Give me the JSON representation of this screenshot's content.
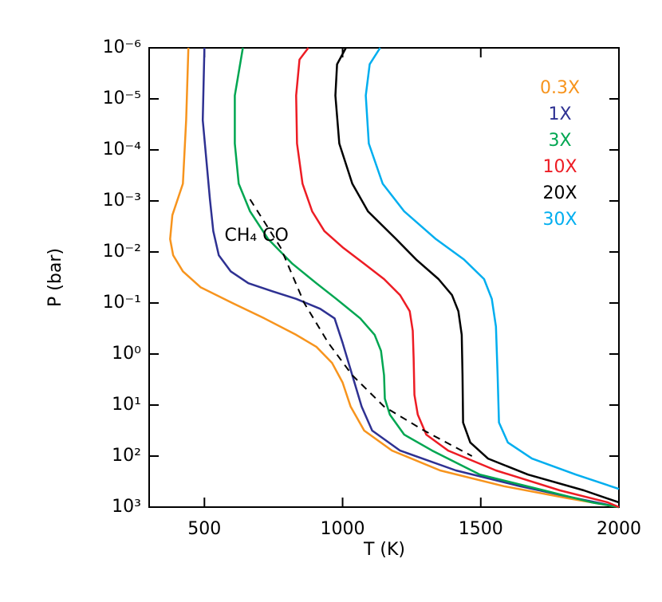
{
  "chart_data": {
    "type": "line",
    "x_label": "T (K)",
    "y_label": "P (bar)",
    "xlim": [
      300,
      2000
    ],
    "xticks": [
      500,
      1000,
      1500,
      2000
    ],
    "ylim": [
      1e-06,
      1000
    ],
    "yscale": "log",
    "y_inverted": true,
    "yticks": [
      {
        "value": 1e-06,
        "label": "10⁻⁶"
      },
      {
        "value": 1e-05,
        "label": "10⁻⁵"
      },
      {
        "value": 0.0001,
        "label": "10⁻⁴"
      },
      {
        "value": 0.001,
        "label": "10⁻³"
      },
      {
        "value": 0.01,
        "label": "10⁻²"
      },
      {
        "value": 0.1,
        "label": "10⁻¹"
      },
      {
        "value": 1,
        "label": "10⁰"
      },
      {
        "value": 10,
        "label": "10¹"
      },
      {
        "value": 100,
        "label": "10²"
      },
      {
        "value": 1000,
        "label": "10³"
      }
    ],
    "legend": "upper right",
    "series": [
      {
        "name": "0.3X",
        "color": "#f7941d",
        "x": [
          442,
          434,
          422,
          384,
          376,
          387,
          422,
          486,
          601,
          717,
          832,
          905,
          962,
          1000,
          1029,
          1078,
          1179,
          1353,
          1584,
          1815,
          2000
        ],
        "values": [
          1e-06,
          2.6e-05,
          0.00046,
          0.0019,
          0.0056,
          0.0116,
          0.024,
          0.049,
          0.1,
          0.2,
          0.42,
          0.72,
          1.5,
          3.6,
          10.7,
          31.6,
          78,
          191,
          390,
          670,
          1000
        ]
      },
      {
        "name": "1X",
        "color": "#2e3192",
        "x": [
          500,
          494,
          520,
          532,
          552,
          595,
          659,
          746,
          832,
          919,
          971,
          1000,
          1035,
          1069,
          1107,
          1208,
          1410,
          1642,
          1844,
          2000
        ],
        "values": [
          1e-06,
          2.6e-05,
          0.00093,
          0.0039,
          0.0116,
          0.024,
          0.041,
          0.059,
          0.083,
          0.13,
          0.2,
          0.6,
          2.6,
          10.7,
          31.6,
          78,
          191,
          390,
          670,
          1000
        ]
      },
      {
        "name": "3X",
        "color": "#00a651",
        "x": [
          639,
          610,
          610,
          624,
          665,
          731,
          818,
          905,
          977,
          1064,
          1116,
          1139,
          1150,
          1153,
          1171,
          1223,
          1324,
          1497,
          1728,
          1902,
          2000
        ],
        "values": [
          1e-06,
          8.6e-06,
          7.5e-05,
          0.00046,
          0.0016,
          0.0056,
          0.017,
          0.041,
          0.083,
          0.2,
          0.42,
          0.87,
          2.6,
          7.5,
          15.4,
          38,
          78,
          230,
          470,
          810,
          1000
        ]
      },
      {
        "name": "10X",
        "color": "#ed1c24",
        "x": [
          876,
          844,
          832,
          835,
          855,
          890,
          934,
          1000,
          1078,
          1150,
          1208,
          1243,
          1254,
          1257,
          1260,
          1272,
          1303,
          1382,
          1555,
          1786,
          1960,
          2000
        ],
        "values": [
          1e-06,
          1.7e-06,
          8.6e-06,
          7.5e-05,
          0.00046,
          0.0016,
          0.0039,
          0.0081,
          0.017,
          0.034,
          0.07,
          0.145,
          0.35,
          1.2,
          6.3,
          15.4,
          38,
          78,
          191,
          470,
          810,
          1000
        ]
      },
      {
        "name": "20X",
        "color": "#000000",
        "x": [
          1012,
          980,
          974,
          988,
          1035,
          1092,
          1194,
          1266,
          1347,
          1396,
          1419,
          1431,
          1434,
          1436,
          1462,
          1526,
          1671,
          1873,
          2000
        ],
        "values": [
          1e-06,
          2.1e-06,
          8.6e-06,
          7.5e-05,
          0.00046,
          0.0016,
          0.0056,
          0.014,
          0.034,
          0.07,
          0.145,
          0.42,
          2.6,
          22,
          54,
          112,
          230,
          470,
          810
        ]
      },
      {
        "name": "30X",
        "color": "#00aeef",
        "x": [
          1136,
          1098,
          1084,
          1095,
          1145,
          1223,
          1338,
          1439,
          1512,
          1540,
          1555,
          1561,
          1566,
          1598,
          1685,
          1844,
          2000
        ],
        "values": [
          1e-06,
          2.1e-06,
          8.6e-06,
          7.5e-05,
          0.00046,
          0.0016,
          0.0056,
          0.014,
          0.034,
          0.083,
          0.29,
          2.6,
          22,
          54,
          112,
          230,
          440
        ]
      }
    ],
    "boundary": {
      "label": "CH₄ CO",
      "color": "#000000",
      "x": [
        665,
        775,
        861,
        948,
        1035,
        1150,
        1295,
        1468
      ],
      "values": [
        0.00093,
        0.0081,
        0.1,
        0.6,
        2.6,
        10.7,
        31.6,
        100
      ]
    }
  }
}
